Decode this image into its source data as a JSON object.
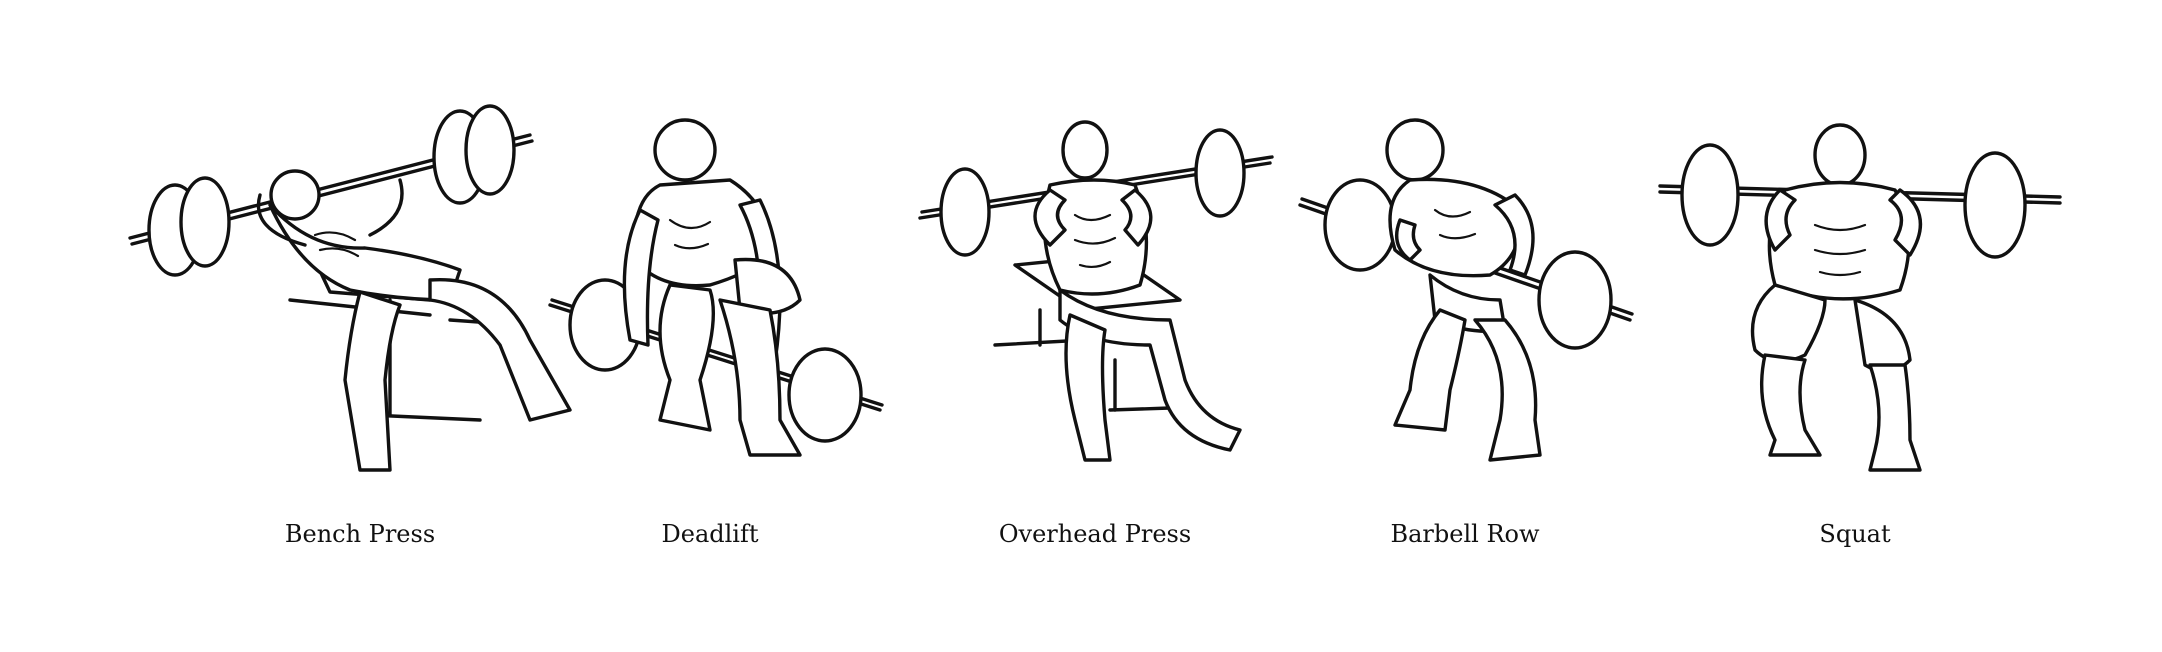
{
  "exercises": [
    {
      "label": "Bench Press",
      "icon": "bench-press-illustration"
    },
    {
      "label": "Deadlift",
      "icon": "deadlift-illustration"
    },
    {
      "label": "Overhead Press",
      "icon": "overhead-press-illustration"
    },
    {
      "label": "Barbell Row",
      "icon": "barbell-row-illustration"
    },
    {
      "label": "Squat",
      "icon": "squat-illustration"
    }
  ],
  "colors": {
    "ink": "#111111",
    "background": "#ffffff"
  }
}
